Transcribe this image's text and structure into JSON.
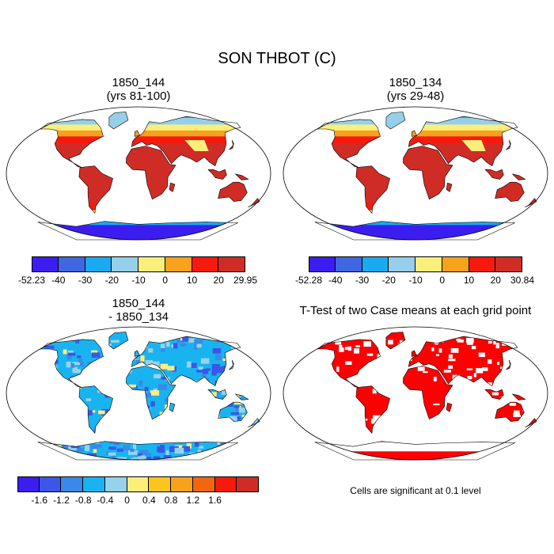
{
  "title": "SON THBOT (C)",
  "panels": [
    {
      "title_line1": "1850_144",
      "title_line2": "(yrs 81-100)",
      "colorbar": {
        "colors": [
          "#3c1df0",
          "#3f67e2",
          "#19aaf0",
          "#96cfea",
          "#fbee7a",
          "#f6a21d",
          "#f61a0e",
          "#cf2c26"
        ],
        "labels": [
          "-52.23",
          "-40",
          "-30",
          "-20",
          "-10",
          "0",
          "10",
          "20",
          "29.95"
        ]
      }
    },
    {
      "title_line1": "1850_134",
      "title_line2": "(yrs 29-48)",
      "colorbar": {
        "colors": [
          "#3c1df0",
          "#3f67e2",
          "#19aaf0",
          "#96cfea",
          "#fbee7a",
          "#f6a21d",
          "#f61a0e",
          "#cf2c26"
        ],
        "labels": [
          "-52.28",
          "-40",
          "-30",
          "-20",
          "-10",
          "0",
          "10",
          "20",
          "30.84"
        ]
      }
    },
    {
      "title_line1": "1850_144",
      "title_line2": "- 1850_134",
      "colorbar": {
        "colors": [
          "#3c1df0",
          "#3b56e8",
          "#3b88e8",
          "#19b4f0",
          "#96d3ea",
          "#fbee7a",
          "#fbc51e",
          "#f6a21d",
          "#f2660f",
          "#f61a0e",
          "#cf2c26"
        ],
        "labels": [
          "-1.6",
          "-1.2",
          "-0.8",
          "-0.4",
          "0",
          "0.4",
          "0.8",
          "1.2",
          "1.6"
        ]
      }
    },
    {
      "title_line1": "T-Test of two Case means at each grid point",
      "note": "Cells are significant at 0.1 level",
      "significant_color": "#ff0000"
    }
  ]
}
